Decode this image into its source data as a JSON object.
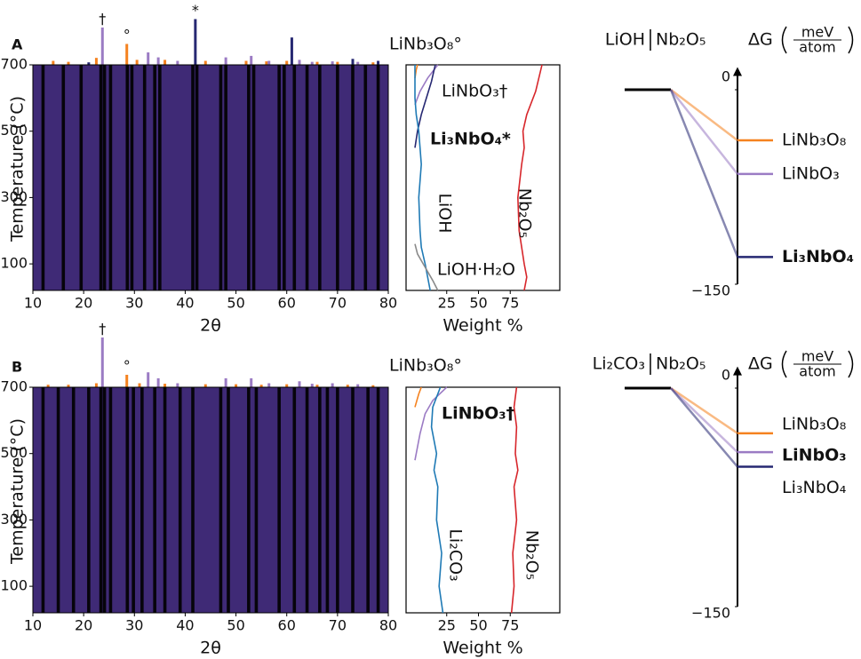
{
  "chart_data": [
    {
      "type": "heatmap",
      "panel": "A",
      "xlabel": "2θ",
      "ylabel": "Temperature (°C)",
      "xlim": [
        10,
        80
      ],
      "ylim": [
        20,
        700
      ],
      "xticks": [
        10,
        20,
        30,
        40,
        50,
        60,
        70,
        80
      ],
      "yticks": [
        100,
        300,
        500,
        700
      ],
      "stripes": {
        "x": [
          12,
          16,
          19.5,
          23.4,
          24.1,
          25.3,
          28.6,
          29.5,
          32,
          34,
          35,
          41.5,
          42.3,
          47,
          48,
          52.5,
          53.5,
          58.5,
          59.5,
          61.5,
          64,
          66.5,
          70,
          73,
          75.5,
          78
        ],
        "values": [
          0.2,
          0.2,
          0.25,
          1.0,
          0.95,
          0.6,
          0.7,
          0.7,
          0.55,
          0.5,
          0.4,
          0.55,
          0.45,
          0.45,
          0.5,
          0.5,
          0.45,
          0.55,
          0.45,
          0.5,
          0.35,
          0.3,
          0.3,
          0.28,
          0.25,
          0.22
        ]
      },
      "reference": [
        {
          "color": "#f5821f",
          "marker": "°",
          "x": [
            14,
            17,
            22.5,
            28.5,
            30.5,
            36,
            44,
            52,
            56,
            60,
            66,
            70,
            77
          ],
          "values": [
            8,
            6,
            14,
            42,
            10,
            10,
            8,
            8,
            7,
            8,
            6,
            6,
            5
          ]
        },
        {
          "color": "#9b7bc4",
          "marker": "†",
          "x": [
            23.7,
            32.7,
            34.7,
            38.5,
            48,
            53,
            56.5,
            62.5,
            65,
            69,
            74
          ],
          "values": [
            75,
            25,
            15,
            8,
            15,
            18,
            8,
            10,
            6,
            7,
            6
          ]
        },
        {
          "color": "#262872",
          "marker": "*",
          "x": [
            21,
            42,
            61,
            73,
            78
          ],
          "values": [
            5,
            92,
            55,
            12,
            8
          ]
        }
      ]
    },
    {
      "type": "weight",
      "xlabel": "Weight %",
      "xlim": [
        -7,
        114
      ],
      "ylim": [
        20,
        700
      ],
      "xticks": [
        25,
        50,
        75
      ],
      "series": [
        {
          "name": "LiNb₃O₈°",
          "color": "#f5821f",
          "values": [
            0,
            1,
            2
          ],
          "temperatures": [
            660,
            685,
            700
          ]
        },
        {
          "name": "LiNbO₃†",
          "color": "#9b7bc4",
          "values": [
            0,
            4,
            10,
            18
          ],
          "temperatures": [
            580,
            620,
            660,
            700
          ]
        },
        {
          "name": "Li₃NbO₄*",
          "color": "#262872",
          "bold": true,
          "values": [
            0,
            2,
            5,
            9,
            13,
            16
          ],
          "temperatures": [
            450,
            500,
            550,
            600,
            650,
            700
          ]
        },
        {
          "name": "LiOH",
          "color": "#1f7ab5",
          "values": [
            12,
            8,
            5,
            4,
            3,
            5,
            3,
            1,
            0,
            0
          ],
          "temperatures": [
            20,
            100,
            150,
            200,
            300,
            400,
            500,
            550,
            600,
            700
          ]
        },
        {
          "name": "Nb₂O₅",
          "color": "#d7262b",
          "values": [
            86,
            88,
            86,
            82,
            81,
            84,
            86,
            85,
            88,
            95,
            100
          ],
          "temperatures": [
            20,
            60,
            100,
            200,
            300,
            400,
            450,
            500,
            550,
            620,
            700
          ]
        },
        {
          "name": "LiOH·H₂O",
          "color": "#8a8a8a",
          "values": [
            18,
            14,
            8,
            2,
            0
          ],
          "temperatures": [
            20,
            50,
            90,
            130,
            160
          ]
        }
      ]
    },
    {
      "type": "energy",
      "reactants": [
        "LiOH",
        "Nb₂O₅"
      ],
      "reactant_colors": [
        "#1f7ab5",
        "#d7262b"
      ],
      "reference": 0,
      "ylabel": "ΔG",
      "yunit": [
        "meV",
        "atom"
      ],
      "ylim": [
        -150,
        12
      ],
      "yticks": [
        0,
        {
          "value": -150,
          "label": "−150"
        }
      ],
      "categories": [
        "LiNb₃O₈",
        "LiNbO₃",
        "Li₃NbO₄"
      ],
      "values": [
        -39,
        -65,
        -129
      ],
      "colors": [
        "#f5821f",
        "#9b7bc4",
        "#262872"
      ],
      "bold": [
        false,
        false,
        true
      ]
    },
    {
      "type": "heatmap",
      "panel": "B",
      "xlabel": "2θ",
      "ylabel": "Temperature (°C)",
      "xlim": [
        10,
        80
      ],
      "ylim": [
        20,
        700
      ],
      "xticks": [
        10,
        20,
        30,
        40,
        50,
        60,
        70,
        80
      ],
      "yticks": [
        100,
        300,
        500,
        700
      ],
      "stripes": {
        "x": [
          12,
          15,
          18,
          21,
          23.4,
          24.1,
          25.3,
          28.6,
          29.8,
          31.5,
          34,
          36,
          39,
          41.5,
          47,
          48.5,
          52.5,
          54,
          58.5,
          61.5,
          64,
          66.5,
          68,
          70,
          73,
          76,
          78
        ],
        "values": [
          0.25,
          0.22,
          0.28,
          0.3,
          1.0,
          0.95,
          0.55,
          0.9,
          0.55,
          0.5,
          0.55,
          0.4,
          0.35,
          0.4,
          0.5,
          0.45,
          0.5,
          0.45,
          0.5,
          0.45,
          0.4,
          0.4,
          0.35,
          0.35,
          0.3,
          0.3,
          0.25
        ]
      },
      "reference": [
        {
          "color": "#f5821f",
          "marker": "°",
          "x": [
            13,
            17,
            22.5,
            28.5,
            31,
            36,
            44,
            50,
            55,
            60,
            66,
            72,
            77
          ],
          "values": [
            5,
            5,
            8,
            25,
            8,
            7,
            6,
            6,
            5,
            6,
            5,
            5,
            4
          ]
        },
        {
          "color": "#9b7bc4",
          "marker": "†",
          "x": [
            23.7,
            32.7,
            34.7,
            38.5,
            48,
            53,
            56.5,
            62.5,
            65,
            69,
            74
          ],
          "values": [
            100,
            30,
            18,
            8,
            18,
            18,
            8,
            12,
            7,
            8,
            6
          ]
        }
      ]
    },
    {
      "type": "weight",
      "xlabel": "Weight %",
      "xlim": [
        -7,
        114
      ],
      "ylim": [
        20,
        700
      ],
      "xticks": [
        25,
        50,
        75
      ],
      "series": [
        {
          "name": "LiNb₃O₈°",
          "color": "#f5821f",
          "values": [
            0,
            3,
            5
          ],
          "temperatures": [
            640,
            680,
            700
          ]
        },
        {
          "name": "LiNbO₃†",
          "color": "#9b7bc4",
          "bold": true,
          "values": [
            0,
            4,
            8,
            14,
            25
          ],
          "temperatures": [
            480,
            560,
            620,
            660,
            700
          ]
        },
        {
          "name": "Li₂CO₃",
          "color": "#1f7ab5",
          "values": [
            22,
            19,
            21,
            17,
            18,
            15,
            17,
            13,
            14,
            20
          ],
          "temperatures": [
            20,
            100,
            200,
            300,
            400,
            450,
            500,
            580,
            640,
            700
          ]
        },
        {
          "name": "Nb₂O₅",
          "color": "#d7262b",
          "values": [
            76,
            78,
            77,
            80,
            78,
            81,
            79,
            80,
            78,
            80
          ],
          "temperatures": [
            20,
            100,
            200,
            300,
            400,
            450,
            500,
            580,
            640,
            700
          ]
        }
      ]
    },
    {
      "type": "energy",
      "reactants": [
        "Li₂CO₃",
        "Nb₂O₅"
      ],
      "reactant_colors": [
        "#1f7ab5",
        "#d7262b"
      ],
      "reference": 0,
      "ylabel": "ΔG",
      "yunit": [
        "meV",
        "atom"
      ],
      "ylim": [
        -150,
        10
      ],
      "yticks": [
        0,
        {
          "value": -150,
          "label": "−150"
        }
      ],
      "categories": [
        "LiNb₃O₈",
        "LiNbO₃",
        "Li₃NbO₄"
      ],
      "values": [
        -31,
        -44,
        -54
      ],
      "colors": [
        "#f5821f",
        "#9b7bc4",
        "#262872"
      ],
      "bold": [
        false,
        true,
        false
      ]
    }
  ]
}
